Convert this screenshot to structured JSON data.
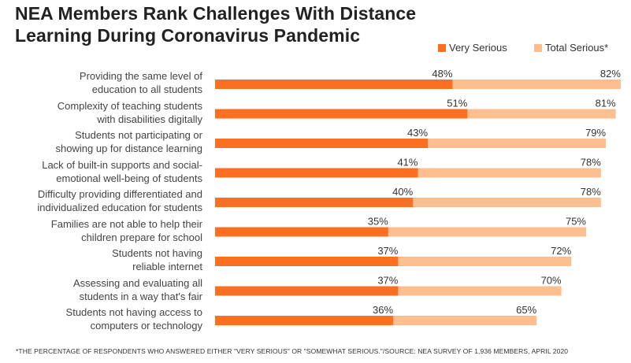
{
  "chart_data": {
    "type": "bar",
    "orientation": "horizontal",
    "overlapping": true,
    "title": "NEA Members Rank Challenges With Distance Learning During Coronavirus Pandemic",
    "title_lines": [
      "NEA Members Rank Challenges With Distance",
      "Learning During Coronavirus Pandemic"
    ],
    "xlabel": "",
    "ylabel": "",
    "xlim": [
      0,
      100
    ],
    "grid": false,
    "legend_position": "top-right",
    "categories": [
      "Providing the same level of education to all students",
      "Complexity of teaching students with disabilities digitally",
      "Students not participating or showing up for distance learning",
      "Lack of built-in supports and social-emotional well-being of students",
      "Difficulty providing differentiated and individualized education for students",
      "Families are not able to help their children prepare for school",
      "Students not having reliable internet",
      "Assessing and evaluating all students in a way that's fair",
      "Students not having access to computers or technology"
    ],
    "category_lines": [
      [
        "Providing the same level of",
        "education to all students"
      ],
      [
        "Complexity of teaching students",
        "with disabilities digitally"
      ],
      [
        "Students not participating or",
        "showing up for distance learning"
      ],
      [
        "Lack of built-in supports and social-",
        "emotional well-being of students"
      ],
      [
        "Difficulty providing differentiated and",
        "individualized education for students"
      ],
      [
        "Families are not able to help their",
        "children prepare for school"
      ],
      [
        "Students not having",
        "reliable internet"
      ],
      [
        "Assessing and evaluating all",
        "students in a way that's fair"
      ],
      [
        "Students not having access to",
        "computers or technology"
      ]
    ],
    "series": [
      {
        "name": "Total Serious*",
        "color": "#FDBF8F",
        "values": [
          82,
          81,
          79,
          78,
          78,
          75,
          72,
          70,
          65
        ]
      },
      {
        "name": "Very Serious",
        "color": "#FA7020",
        "values": [
          48,
          51,
          43,
          41,
          40,
          35,
          37,
          37,
          36
        ]
      }
    ],
    "value_suffix": "%"
  },
  "legend": {
    "very_serious": "Very Serious",
    "total_serious": "Total Serious*"
  },
  "footnote": "*THE PERCENTAGE OF RESPONDENTS WHO ANSWERED EITHER \"VERY SERIOUS\" OR \"SOMEWHAT SERIOUS.\"/SOURCE: NEA SURVEY OF 1,936 MEMBERS, APRIL 2020"
}
